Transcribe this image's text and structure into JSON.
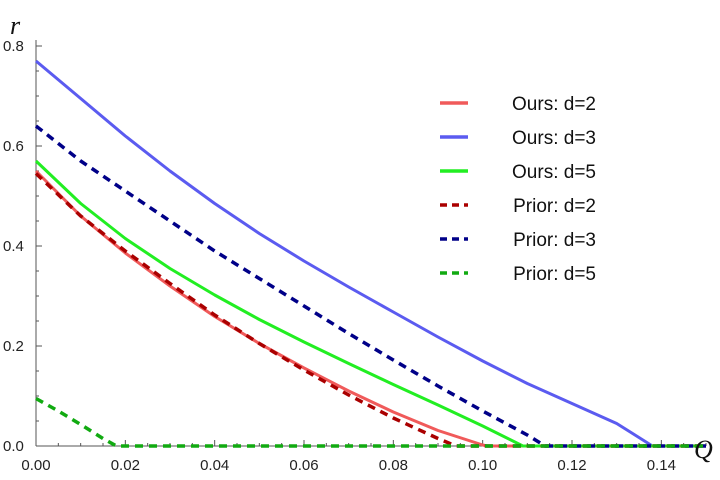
{
  "chart_data": {
    "type": "line",
    "title": "",
    "xlabel": "Q",
    "ylabel": "r",
    "xlim": [
      0,
      0.15
    ],
    "ylim": [
      0,
      0.8
    ],
    "x_ticks": [
      0,
      0.02,
      0.04,
      0.06,
      0.08,
      0.1,
      0.12,
      0.14
    ],
    "x_tick_labels": [
      "0.00",
      "0.02",
      "0.04",
      "0.06",
      "0.08",
      "0.10",
      "0.12",
      "0.14"
    ],
    "y_ticks": [
      0,
      0.2,
      0.4,
      0.6,
      0.8
    ],
    "y_tick_labels": [
      "0.0",
      "0.2",
      "0.4",
      "0.6",
      "0.8"
    ],
    "grid": false,
    "legend_position": "top-right",
    "series": [
      {
        "name": "Ours: d=2",
        "color": "#f05a5a",
        "style": "solid",
        "x": [
          0,
          0.01,
          0.02,
          0.03,
          0.04,
          0.05,
          0.06,
          0.07,
          0.08,
          0.09,
          0.1,
          0.101,
          0.15
        ],
        "y": [
          0.55,
          0.46,
          0.386,
          0.32,
          0.259,
          0.205,
          0.156,
          0.11,
          0.068,
          0.031,
          0.002,
          0,
          0
        ]
      },
      {
        "name": "Ours: d=3",
        "color": "#5b5bf0",
        "style": "solid",
        "x": [
          0,
          0.01,
          0.02,
          0.03,
          0.04,
          0.05,
          0.06,
          0.07,
          0.08,
          0.09,
          0.1,
          0.11,
          0.12,
          0.13,
          0.138,
          0.15
        ],
        "y": [
          0.77,
          0.695,
          0.62,
          0.55,
          0.485,
          0.425,
          0.37,
          0.318,
          0.268,
          0.218,
          0.17,
          0.125,
          0.085,
          0.045,
          0,
          0
        ]
      },
      {
        "name": "Ours: d=5",
        "color": "#22ee22",
        "style": "solid",
        "x": [
          0,
          0.01,
          0.02,
          0.03,
          0.04,
          0.05,
          0.06,
          0.07,
          0.08,
          0.09,
          0.1,
          0.109,
          0.15
        ],
        "y": [
          0.57,
          0.485,
          0.415,
          0.355,
          0.302,
          0.253,
          0.208,
          0.165,
          0.123,
          0.082,
          0.04,
          0,
          0
        ]
      },
      {
        "name": "Prior: d=2",
        "color": "#aa0000",
        "style": "dashed",
        "x": [
          0,
          0.01,
          0.02,
          0.03,
          0.04,
          0.05,
          0.06,
          0.07,
          0.08,
          0.09,
          0.094,
          0.15
        ],
        "y": [
          0.545,
          0.46,
          0.39,
          0.325,
          0.262,
          0.205,
          0.152,
          0.102,
          0.056,
          0.015,
          0,
          0
        ]
      },
      {
        "name": "Prior: d=3",
        "color": "#000088",
        "style": "dashed",
        "x": [
          0,
          0.01,
          0.02,
          0.03,
          0.04,
          0.05,
          0.06,
          0.07,
          0.08,
          0.09,
          0.1,
          0.11,
          0.114,
          0.15
        ],
        "y": [
          0.64,
          0.57,
          0.51,
          0.45,
          0.39,
          0.335,
          0.28,
          0.225,
          0.172,
          0.12,
          0.07,
          0.022,
          0,
          0
        ]
      },
      {
        "name": "Prior: d=5",
        "color": "#11aa11",
        "style": "dashed",
        "x": [
          0,
          0.005,
          0.01,
          0.015,
          0.018,
          0.15
        ],
        "y": [
          0.095,
          0.07,
          0.043,
          0.015,
          0,
          0
        ]
      }
    ]
  }
}
